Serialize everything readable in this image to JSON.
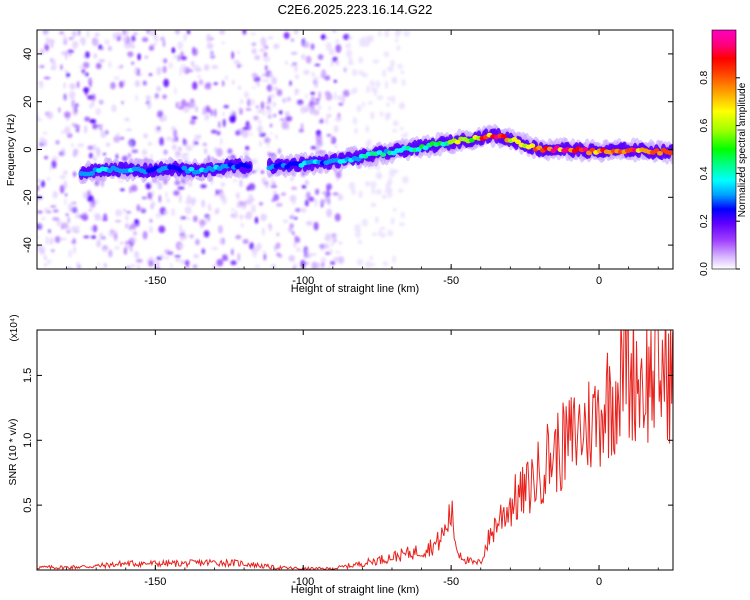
{
  "chart_data": [
    {
      "type": "heatmap",
      "title": "C2E6.2025.223.16.14.G22",
      "xlabel": "Height of straight line (km)",
      "ylabel": "Frequency (Hz)",
      "xlim": [
        -190,
        25
      ],
      "ylim": [
        -50,
        50
      ],
      "xticks": [
        -150,
        -100,
        -50,
        0
      ],
      "yticks": [
        -40,
        -20,
        0,
        20,
        40
      ],
      "colorbar": {
        "label": "Normalized spectral amplitude",
        "range": [
          0,
          1
        ],
        "ticks": [
          "0.0",
          "0.2",
          "0.4",
          "0.6",
          "0.8"
        ],
        "colors": [
          "#ffffff",
          "#d8b8ff",
          "#a040ff",
          "#6000ff",
          "#0000ff",
          "#00a0ff",
          "#00ffff",
          "#00ff80",
          "#00ff00",
          "#a0ff00",
          "#ffff00",
          "#ffa000",
          "#ff4000",
          "#ff0000",
          "#ff0080",
          "#ff00c0"
        ]
      },
      "signal_track": [
        {
          "x": -175,
          "y": -10,
          "amp": 0.35
        },
        {
          "x": -165,
          "y": -8,
          "amp": 0.4
        },
        {
          "x": -155,
          "y": -9,
          "amp": 0.38
        },
        {
          "x": -145,
          "y": -8,
          "amp": 0.35
        },
        {
          "x": -135,
          "y": -9,
          "amp": 0.4
        },
        {
          "x": -125,
          "y": -7,
          "amp": 0.35
        },
        {
          "x": -110,
          "y": -7,
          "amp": 0.3
        },
        {
          "x": -100,
          "y": -6,
          "amp": 0.35
        },
        {
          "x": -90,
          "y": -5,
          "amp": 0.4
        },
        {
          "x": -80,
          "y": -3,
          "amp": 0.45
        },
        {
          "x": -70,
          "y": -1,
          "amp": 0.45
        },
        {
          "x": -60,
          "y": 1,
          "amp": 0.5
        },
        {
          "x": -50,
          "y": 3,
          "amp": 0.55
        },
        {
          "x": -40,
          "y": 5,
          "amp": 0.75
        },
        {
          "x": -35,
          "y": 6,
          "amp": 0.9
        },
        {
          "x": -30,
          "y": 4,
          "amp": 0.8
        },
        {
          "x": -25,
          "y": 2,
          "amp": 0.7
        },
        {
          "x": -20,
          "y": 0,
          "amp": 0.85
        },
        {
          "x": -10,
          "y": 0,
          "amp": 0.9
        },
        {
          "x": 0,
          "y": -1,
          "amp": 0.85
        },
        {
          "x": 10,
          "y": 0,
          "amp": 0.85
        },
        {
          "x": 20,
          "y": -1,
          "amp": 0.8
        },
        {
          "x": 25,
          "y": -1,
          "amp": 0.75
        }
      ]
    },
    {
      "type": "line",
      "xlabel": "Height of straight line (km)",
      "ylabel": "SNR (10 * v/v)",
      "y_multiplier": "(x10⁴)",
      "xlim": [
        -190,
        25
      ],
      "ylim": [
        0,
        1.85
      ],
      "xticks": [
        -150,
        -100,
        -50,
        0
      ],
      "yticks": [
        "0.5",
        "1.0",
        "1.5"
      ],
      "color": "#e8231e",
      "x": [
        -190,
        -180,
        -170,
        -160,
        -150,
        -140,
        -130,
        -120,
        -110,
        -100,
        -90,
        -80,
        -70,
        -60,
        -55,
        -52,
        -50,
        -48,
        -45,
        -42,
        -40,
        -38,
        -35,
        -32,
        -30,
        -28,
        -25,
        -22,
        -20,
        -18,
        -15,
        -12,
        -10,
        -8,
        -5,
        -2,
        0,
        2,
        5,
        8,
        9,
        10,
        12,
        15,
        18,
        20,
        22,
        25
      ],
      "values": [
        0.02,
        0.02,
        0.03,
        0.05,
        0.05,
        0.05,
        0.06,
        0.05,
        0.02,
        0.01,
        0.01,
        0.05,
        0.1,
        0.15,
        0.2,
        0.3,
        0.45,
        0.15,
        0.08,
        0.05,
        0.06,
        0.2,
        0.35,
        0.45,
        0.5,
        0.55,
        0.6,
        0.7,
        0.75,
        0.85,
        0.9,
        0.95,
        1.0,
        1.05,
        1.1,
        1.15,
        1.2,
        1.3,
        1.35,
        1.5,
        1.85,
        1.45,
        1.55,
        1.45,
        1.5,
        1.5,
        1.55,
        1.5
      ]
    }
  ]
}
